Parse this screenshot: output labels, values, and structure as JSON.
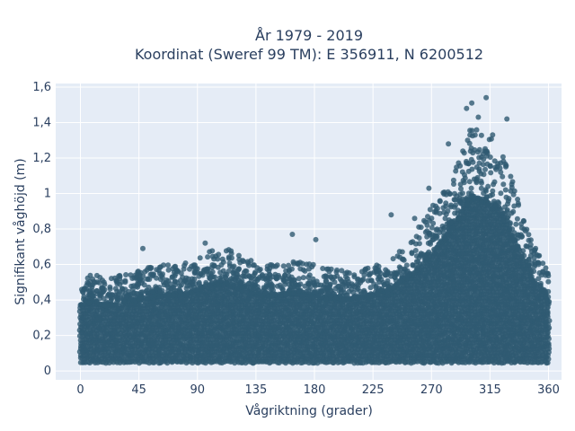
{
  "chart_data": {
    "type": "scatter",
    "title_line1": "År 1979 - 2019",
    "title_line2": "Koordinat (Sweref 99 TM): E 356911, N 6200512",
    "xlabel": "Vågriktning (grader)",
    "ylabel": "Signifikant våghöjd (m)",
    "xlim": [
      -19,
      370
    ],
    "ylim": [
      -0.05,
      1.62
    ],
    "x_ticks": [
      0,
      45,
      90,
      135,
      180,
      225,
      270,
      315,
      360
    ],
    "x_tick_labels": [
      "0",
      "45",
      "90",
      "135",
      "180",
      "225",
      "270",
      "315",
      "360"
    ],
    "y_ticks": [
      0,
      0.2,
      0.4,
      0.6,
      0.8,
      1.0,
      1.2,
      1.4,
      1.6
    ],
    "y_tick_labels": [
      "0",
      "0,2",
      "0,4",
      "0,6",
      "0,8",
      "1",
      "1,2",
      "1,4",
      "1,6"
    ],
    "grid": true,
    "marker_color": "#2f5a72",
    "plot_bg": "#e5ecf6",
    "x_range_of_data": [
      0,
      360
    ],
    "y_min_of_data": 0.03,
    "upper_envelope": [
      [
        0,
        0.53
      ],
      [
        10,
        0.55
      ],
      [
        20,
        0.52
      ],
      [
        30,
        0.54
      ],
      [
        45,
        0.57
      ],
      [
        60,
        0.6
      ],
      [
        75,
        0.6
      ],
      [
        90,
        0.63
      ],
      [
        100,
        0.68
      ],
      [
        110,
        0.7
      ],
      [
        120,
        0.66
      ],
      [
        135,
        0.61
      ],
      [
        150,
        0.6
      ],
      [
        165,
        0.62
      ],
      [
        180,
        0.6
      ],
      [
        195,
        0.57
      ],
      [
        210,
        0.58
      ],
      [
        225,
        0.6
      ],
      [
        240,
        0.66
      ],
      [
        255,
        0.76
      ],
      [
        270,
        0.92
      ],
      [
        280,
        1.06
      ],
      [
        290,
        1.2
      ],
      [
        300,
        1.38
      ],
      [
        310,
        1.35
      ],
      [
        320,
        1.3
      ],
      [
        330,
        1.12
      ],
      [
        340,
        0.9
      ],
      [
        350,
        0.7
      ],
      [
        360,
        0.55
      ]
    ],
    "outliers": [
      {
        "x": 297,
        "y": 1.48
      },
      {
        "x": 301,
        "y": 1.51
      },
      {
        "x": 312,
        "y": 1.54
      },
      {
        "x": 328,
        "y": 1.42
      },
      {
        "x": 306,
        "y": 1.43
      },
      {
        "x": 317,
        "y": 1.33
      },
      {
        "x": 283,
        "y": 1.28
      },
      {
        "x": 239,
        "y": 0.88
      },
      {
        "x": 163,
        "y": 0.77
      },
      {
        "x": 48,
        "y": 0.69
      },
      {
        "x": 96,
        "y": 0.72
      },
      {
        "x": 181,
        "y": 0.74
      },
      {
        "x": 350,
        "y": 0.69
      },
      {
        "x": 257,
        "y": 0.86
      },
      {
        "x": 268,
        "y": 1.03
      }
    ]
  }
}
